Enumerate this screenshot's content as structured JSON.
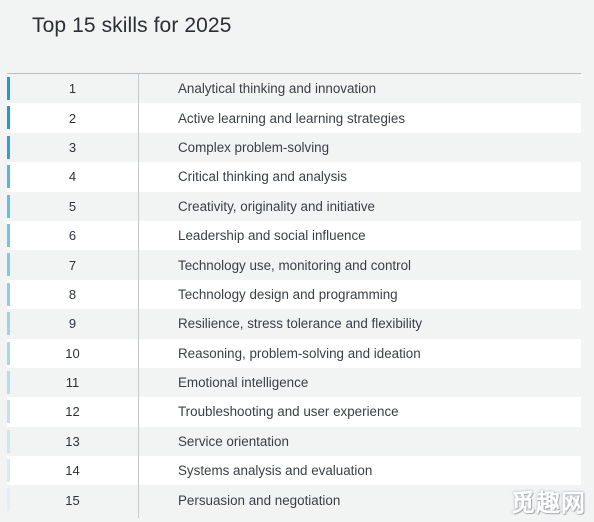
{
  "title": "Top 15 skills for 2025",
  "watermark": "觅趣网",
  "rows": [
    {
      "rank": "1",
      "skill": "Analytical thinking and innovation",
      "bar_color": "#1e9ad0"
    },
    {
      "rank": "2",
      "skill": "Active learning and learning strategies",
      "bar_color": "#1e9ad0"
    },
    {
      "rank": "3",
      "skill": "Complex problem-solving",
      "bar_color": "#2aa2d6"
    },
    {
      "rank": "4",
      "skill": "Critical thinking and analysis",
      "bar_color": "#55b6df"
    },
    {
      "rank": "5",
      "skill": "Creativity, originality and initiative",
      "bar_color": "#66bde3"
    },
    {
      "rank": "6",
      "skill": "Leadership and social influence",
      "bar_color": "#72c3e6"
    },
    {
      "rank": "7",
      "skill": "Technology use, monitoring and control",
      "bar_color": "#7fc9e8"
    },
    {
      "rank": "8",
      "skill": "Technology design and programming",
      "bar_color": "#8cceea"
    },
    {
      "rank": "9",
      "skill": "Resilience, stress tolerance and flexibility",
      "bar_color": "#9ad4ec"
    },
    {
      "rank": "10",
      "skill": "Reasoning, problem-solving and ideation",
      "bar_color": "#a6d9ee"
    },
    {
      "rank": "11",
      "skill": "Emotional intelligence",
      "bar_color": "#b3def0"
    },
    {
      "rank": "12",
      "skill": "Troubleshooting and user experience",
      "bar_color": "#bfe3f2"
    },
    {
      "rank": "13",
      "skill": "Service orientation",
      "bar_color": "#cae8f4"
    },
    {
      "rank": "14",
      "skill": "Systems analysis and evaluation",
      "bar_color": "#d4ecf6"
    },
    {
      "rank": "15",
      "skill": "Persuasion and negotiation",
      "bar_color": "#ddf0f8"
    }
  ]
}
